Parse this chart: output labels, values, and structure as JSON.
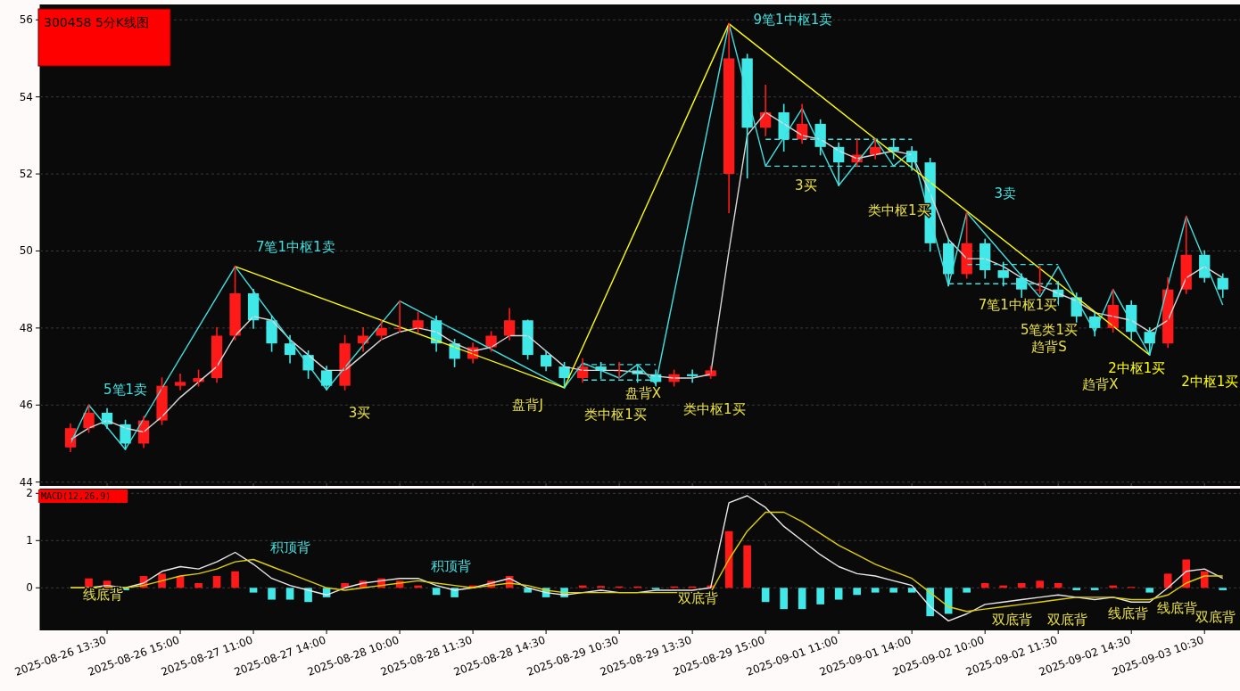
{
  "chart_data": [
    {
      "type": "candlestick",
      "title": "300458 5分K线图",
      "categories": [
        null,
        null,
        "2025-08-26 13:30",
        null,
        null,
        null,
        "2025-08-26 15:00",
        null,
        null,
        null,
        "2025-08-27 11:00",
        null,
        null,
        null,
        "2025-08-27 14:00",
        null,
        null,
        null,
        "2025-08-28 10:00",
        null,
        null,
        null,
        "2025-08-28 11:30",
        null,
        null,
        null,
        "2025-08-28 14:30",
        null,
        null,
        null,
        "2025-08-29 10:30",
        null,
        null,
        null,
        "2025-08-29 13:30",
        null,
        null,
        null,
        "2025-08-29 15:00",
        null,
        null,
        null,
        "2025-09-01 11:00",
        null,
        null,
        null,
        "2025-09-01 14:00",
        null,
        null,
        null,
        "2025-09-02 10:00",
        null,
        null,
        null,
        "2025-09-02 11:30",
        null,
        null,
        null,
        "2025-09-02 14:30",
        null,
        null,
        null,
        "2025-09-03 10:30",
        null
      ],
      "ohlc": [
        [
          44.9,
          45.5,
          44.8,
          45.4
        ],
        [
          45.4,
          46.0,
          45.3,
          45.8
        ],
        [
          45.8,
          45.9,
          45.4,
          45.5
        ],
        [
          45.5,
          45.6,
          44.85,
          45.0
        ],
        [
          45.0,
          45.7,
          44.9,
          45.6
        ],
        [
          45.6,
          46.7,
          45.5,
          46.5
        ],
        [
          46.5,
          46.8,
          46.4,
          46.6
        ],
        [
          46.6,
          46.9,
          46.5,
          46.7
        ],
        [
          46.7,
          48.0,
          46.6,
          47.8
        ],
        [
          47.8,
          49.6,
          47.7,
          48.9
        ],
        [
          48.9,
          49.0,
          48.0,
          48.2
        ],
        [
          48.2,
          48.3,
          47.4,
          47.6
        ],
        [
          47.6,
          47.8,
          47.1,
          47.3
        ],
        [
          47.3,
          47.4,
          46.7,
          46.9
        ],
        [
          46.9,
          47.0,
          46.4,
          46.5
        ],
        [
          46.5,
          47.8,
          46.4,
          47.6
        ],
        [
          47.6,
          48.0,
          47.4,
          47.8
        ],
        [
          47.8,
          48.2,
          47.7,
          48.0
        ],
        [
          48.0,
          48.7,
          47.9,
          48.0
        ],
        [
          48.0,
          48.4,
          47.9,
          48.2
        ],
        [
          48.2,
          48.3,
          47.4,
          47.6
        ],
        [
          47.6,
          47.7,
          47.0,
          47.2
        ],
        [
          47.2,
          47.6,
          47.1,
          47.5
        ],
        [
          47.5,
          47.9,
          47.4,
          47.8
        ],
        [
          47.8,
          48.5,
          47.7,
          48.2
        ],
        [
          48.2,
          48.2,
          47.2,
          47.3
        ],
        [
          47.3,
          47.4,
          46.9,
          47.0
        ],
        [
          47.0,
          47.1,
          46.45,
          46.7
        ],
        [
          46.7,
          47.2,
          46.6,
          47.0
        ],
        [
          47.0,
          47.1,
          46.7,
          46.9
        ],
        [
          46.9,
          47.1,
          46.7,
          46.9
        ],
        [
          46.9,
          47.0,
          46.6,
          46.8
        ],
        [
          46.8,
          46.9,
          46.5,
          46.6
        ],
        [
          46.6,
          46.9,
          46.5,
          46.8
        ],
        [
          46.8,
          46.9,
          46.6,
          46.75
        ],
        [
          46.75,
          47.0,
          46.7,
          46.9
        ],
        [
          52.0,
          55.9,
          51.0,
          55.0
        ],
        [
          55.0,
          55.1,
          51.9,
          53.2
        ],
        [
          53.2,
          54.3,
          53.0,
          53.6
        ],
        [
          53.6,
          53.8,
          52.6,
          52.9
        ],
        [
          52.9,
          53.8,
          52.8,
          53.3
        ],
        [
          53.3,
          53.4,
          52.5,
          52.7
        ],
        [
          52.7,
          52.8,
          51.7,
          52.3
        ],
        [
          52.3,
          52.9,
          52.2,
          52.5
        ],
        [
          52.5,
          52.9,
          52.4,
          52.7
        ],
        [
          52.7,
          52.9,
          52.4,
          52.6
        ],
        [
          52.6,
          52.7,
          52.1,
          52.3
        ],
        [
          52.3,
          52.4,
          50.0,
          50.2
        ],
        [
          50.2,
          50.3,
          49.1,
          49.4
        ],
        [
          49.4,
          51.0,
          49.3,
          50.2
        ],
        [
          50.2,
          50.3,
          49.3,
          49.5
        ],
        [
          49.5,
          49.7,
          49.1,
          49.3
        ],
        [
          49.3,
          49.4,
          48.8,
          49.0
        ],
        [
          49.0,
          49.6,
          48.9,
          49.0
        ],
        [
          49.0,
          49.2,
          48.6,
          48.8
        ],
        [
          48.8,
          48.9,
          48.1,
          48.3
        ],
        [
          48.3,
          48.4,
          47.8,
          48.0
        ],
        [
          48.0,
          49.0,
          47.9,
          48.6
        ],
        [
          48.6,
          48.7,
          47.7,
          47.9
        ],
        [
          47.9,
          48.0,
          47.3,
          47.6
        ],
        [
          47.6,
          49.3,
          47.5,
          49.0
        ],
        [
          49.0,
          50.9,
          48.9,
          49.9
        ],
        [
          49.9,
          50.0,
          49.2,
          49.3
        ],
        [
          49.3,
          49.4,
          48.8,
          49.0
        ]
      ],
      "colors": [
        "#ff1a1a",
        "#ff1a1a",
        "#40e8e8",
        "#40e8e8",
        "#ff1a1a",
        "#ff1a1a",
        "#ff1a1a",
        "#ff1a1a",
        "#ff1a1a",
        "#ff1a1a",
        "#40e8e8",
        "#40e8e8",
        "#40e8e8",
        "#40e8e8",
        "#40e8e8",
        "#ff1a1a",
        "#ff1a1a",
        "#ff1a1a",
        "#ff1a1a",
        "#ff1a1a",
        "#40e8e8",
        "#40e8e8",
        "#ff1a1a",
        "#ff1a1a",
        "#ff1a1a",
        "#40e8e8",
        "#40e8e8",
        "#40e8e8",
        "#ff1a1a",
        "#40e8e8",
        "#ff1a1a",
        "#40e8e8",
        "#40e8e8",
        "#ff1a1a",
        "#40e8e8",
        "#ff1a1a",
        "#ff1a1a",
        "#40e8e8",
        "#ff1a1a",
        "#40e8e8",
        "#ff1a1a",
        "#40e8e8",
        "#40e8e8",
        "#ff1a1a",
        "#ff1a1a",
        "#40e8e8",
        "#40e8e8",
        "#40e8e8",
        "#40e8e8",
        "#ff1a1a",
        "#40e8e8",
        "#40e8e8",
        "#40e8e8",
        "#ff1a1a",
        "#40e8e8",
        "#40e8e8",
        "#40e8e8",
        "#ff1a1a",
        "#40e8e8",
        "#40e8e8",
        "#ff1a1a",
        "#ff1a1a",
        "#40e8e8",
        "#40e8e8"
      ],
      "ylim": [
        43.9,
        56.4
      ],
      "yticks": [
        44,
        46,
        48,
        50,
        52,
        54,
        56
      ],
      "grid": "y",
      "tick_labels": "y",
      "series": [
        {
          "type": "line",
          "color": "#d8d8d8",
          "values": [
            45.1,
            45.4,
            45.6,
            45.4,
            45.3,
            45.7,
            46.2,
            46.6,
            47.0,
            47.8,
            48.3,
            48.2,
            47.7,
            47.3,
            46.9,
            46.9,
            47.3,
            47.7,
            47.9,
            48.0,
            47.9,
            47.6,
            47.4,
            47.5,
            47.8,
            47.8,
            47.4,
            47.0,
            46.9,
            46.9,
            46.9,
            46.85,
            46.75,
            46.7,
            46.7,
            46.8,
            50.0,
            53.0,
            53.6,
            53.3,
            53.0,
            52.9,
            52.6,
            52.4,
            52.5,
            52.6,
            52.5,
            51.5,
            50.3,
            49.8,
            49.8,
            49.6,
            49.3,
            49.1,
            48.9,
            48.7,
            48.4,
            48.3,
            48.2,
            47.9,
            48.2,
            49.3,
            49.6,
            49.3
          ]
        },
        {
          "type": "line",
          "color": "#40e0e0",
          "values": [
            45.0,
            46.0,
            null,
            44.85,
            null,
            null,
            null,
            null,
            null,
            49.6,
            null,
            null,
            null,
            null,
            46.4,
            null,
            null,
            null,
            48.7,
            null,
            null,
            null,
            null,
            null,
            null,
            null,
            null,
            46.45,
            47.1,
            null,
            46.7,
            47.05,
            46.55,
            null,
            null,
            null,
            55.9,
            null,
            52.2,
            null,
            53.7,
            null,
            51.7,
            null,
            52.9,
            52.2,
            52.6,
            null,
            49.1,
            51.0,
            null,
            null,
            null,
            48.8,
            49.6,
            null,
            47.9,
            49.0,
            null,
            47.3,
            null,
            50.9,
            null,
            48.6
          ]
        },
        {
          "type": "line",
          "color": "#ffff00",
          "values": [
            null,
            null,
            null,
            null,
            null,
            null,
            null,
            null,
            null,
            49.6,
            null,
            null,
            null,
            null,
            null,
            null,
            null,
            null,
            null,
            null,
            null,
            null,
            null,
            null,
            null,
            null,
            null,
            46.45,
            null,
            null,
            null,
            null,
            null,
            null,
            null,
            null,
            55.9,
            null,
            null,
            null,
            null,
            null,
            null,
            null,
            null,
            null,
            null,
            null,
            null,
            null,
            null,
            null,
            null,
            null,
            null,
            null,
            null,
            null,
            null,
            47.3,
            null,
            null,
            null,
            null
          ]
        },
        {
          "type": "line",
          "color": "#40e0e0",
          "line_style": "dashed",
          "values": [
            null,
            null,
            null,
            null,
            null,
            null,
            null,
            null,
            null,
            null,
            null,
            null,
            null,
            null,
            null,
            null,
            null,
            null,
            null,
            null,
            null,
            null,
            null,
            null,
            null,
            null,
            null,
            null,
            47.05,
            47.05,
            47.05,
            47.05,
            47.05,
            null,
            null,
            null,
            null,
            null,
            null,
            null,
            null,
            null,
            null,
            null,
            null,
            null,
            null,
            null,
            null,
            null,
            null,
            null,
            null,
            null,
            null,
            null,
            null,
            null,
            null,
            null,
            null,
            null,
            null,
            null
          ]
        },
        {
          "type": "line",
          "color": "#40e0e0",
          "line_style": "dashed",
          "values": [
            null,
            null,
            null,
            null,
            null,
            null,
            null,
            null,
            null,
            null,
            null,
            null,
            null,
            null,
            null,
            null,
            null,
            null,
            null,
            null,
            null,
            null,
            null,
            null,
            null,
            null,
            null,
            null,
            46.65,
            46.65,
            46.65,
            46.65,
            46.65,
            null,
            null,
            null,
            null,
            null,
            null,
            null,
            null,
            null,
            null,
            null,
            null,
            null,
            null,
            null,
            null,
            null,
            null,
            null,
            null,
            null,
            null,
            null,
            null,
            null,
            null,
            null,
            null,
            null,
            null,
            null
          ]
        },
        {
          "type": "line",
          "color": "#40e0e0",
          "line_style": "dashed",
          "values": [
            null,
            null,
            null,
            null,
            null,
            null,
            null,
            null,
            null,
            null,
            null,
            null,
            null,
            null,
            null,
            null,
            null,
            null,
            null,
            null,
            null,
            null,
            null,
            null,
            null,
            null,
            null,
            null,
            null,
            null,
            null,
            null,
            null,
            null,
            null,
            null,
            null,
            null,
            52.9,
            52.9,
            52.9,
            52.9,
            52.9,
            52.9,
            52.9,
            52.9,
            52.9,
            null,
            null,
            null,
            null,
            null,
            null,
            null,
            null,
            null,
            null,
            null,
            null,
            null,
            null,
            null,
            null,
            null
          ]
        },
        {
          "type": "line",
          "color": "#40e0e0",
          "line_style": "dashed",
          "values": [
            null,
            null,
            null,
            null,
            null,
            null,
            null,
            null,
            null,
            null,
            null,
            null,
            null,
            null,
            null,
            null,
            null,
            null,
            null,
            null,
            null,
            null,
            null,
            null,
            null,
            null,
            null,
            null,
            null,
            null,
            null,
            null,
            null,
            null,
            null,
            null,
            null,
            null,
            52.2,
            52.2,
            52.2,
            52.2,
            52.2,
            52.2,
            52.2,
            52.2,
            52.2,
            null,
            null,
            null,
            null,
            null,
            null,
            null,
            null,
            null,
            null,
            null,
            null,
            null,
            null,
            null,
            null,
            null
          ]
        },
        {
          "type": "line",
          "color": "#40e0e0",
          "line_style": "dashed",
          "values": [
            null,
            null,
            null,
            null,
            null,
            null,
            null,
            null,
            null,
            null,
            null,
            null,
            null,
            null,
            null,
            null,
            null,
            null,
            null,
            null,
            null,
            null,
            null,
            null,
            null,
            null,
            null,
            null,
            null,
            null,
            null,
            null,
            null,
            null,
            null,
            null,
            null,
            null,
            null,
            null,
            null,
            null,
            null,
            null,
            null,
            null,
            null,
            null,
            null,
            49.65,
            49.65,
            49.65,
            49.65,
            49.65,
            49.65,
            null,
            null,
            null,
            null,
            null,
            null,
            null,
            null,
            null
          ]
        },
        {
          "type": "line",
          "color": "#40e0e0",
          "line_style": "dashed",
          "values": [
            null,
            null,
            null,
            null,
            null,
            null,
            null,
            null,
            null,
            null,
            null,
            null,
            null,
            null,
            null,
            null,
            null,
            null,
            null,
            null,
            null,
            null,
            null,
            null,
            null,
            null,
            null,
            null,
            null,
            null,
            null,
            null,
            null,
            null,
            null,
            null,
            null,
            null,
            null,
            null,
            null,
            null,
            null,
            null,
            null,
            null,
            null,
            null,
            49.15,
            49.15,
            49.15,
            49.15,
            49.15,
            49.15,
            49.15,
            null,
            null,
            null,
            null,
            null,
            null,
            null,
            null,
            null
          ]
        }
      ],
      "annotations": [
        "5笔1卖",
        "7笔1中枢1卖",
        "3买",
        "盘背J",
        "类中枢1买",
        "盘背X",
        "类中枢1买",
        "9笔1中枢1卖",
        "3买",
        "类中枢1买",
        "3卖",
        "7笔1中枢1买",
        "5笔类1买",
        "趋背S",
        "2中枢1买",
        "趋背X",
        "2中枢1买"
      ]
    },
    {
      "type": "bar",
      "title": "MACD(12,26,9)",
      "categories": [
        null,
        null,
        "2025-08-26 13:30",
        null,
        null,
        null,
        "2025-08-26 15:00",
        null,
        null,
        null,
        "2025-08-27 11:00",
        null,
        null,
        null,
        "2025-08-27 14:00",
        null,
        null,
        null,
        "2025-08-28 10:00",
        null,
        null,
        null,
        "2025-08-28 11:30",
        null,
        null,
        null,
        "2025-08-28 14:30",
        null,
        null,
        null,
        "2025-08-29 10:30",
        null,
        null,
        null,
        "2025-08-29 13:30",
        null,
        null,
        null,
        "2025-08-29 15:00",
        null,
        null,
        null,
        "2025-09-01 11:00",
        null,
        null,
        null,
        "2025-09-01 14:00",
        null,
        null,
        null,
        "2025-09-02 10:00",
        null,
        null,
        null,
        "2025-09-02 11:30",
        null,
        null,
        null,
        "2025-09-02 14:30",
        null,
        null,
        null,
        "2025-09-03 10:30",
        null
      ],
      "ylim": [
        -0.9,
        2.1
      ],
      "yticks": [
        0,
        1,
        2
      ],
      "grid": "y",
      "series": [
        {
          "values": [
            0.0,
            0.2,
            0.15,
            -0.05,
            0.25,
            0.3,
            0.25,
            0.1,
            0.25,
            0.35,
            -0.1,
            -0.25,
            -0.25,
            -0.3,
            -0.2,
            0.1,
            0.15,
            0.2,
            0.15,
            0.05,
            -0.15,
            -0.2,
            0.05,
            0.15,
            0.25,
            -0.1,
            -0.2,
            -0.2,
            0.05,
            0.04,
            0.03,
            0.03,
            -0.03,
            0.03,
            0.03,
            0.05,
            1.2,
            0.9,
            -0.3,
            -0.45,
            -0.45,
            -0.35,
            -0.25,
            -0.15,
            -0.1,
            -0.1,
            -0.1,
            -0.6,
            -0.55,
            -0.1,
            0.1,
            0.05,
            0.1,
            0.15,
            0.1,
            -0.05,
            -0.05,
            0.05,
            0.02,
            -0.1,
            0.3,
            0.6,
            0.35,
            -0.05
          ],
          "colors": [
            "#ff1a1a",
            "#ff1a1a",
            "#ff1a1a",
            "#40e8e8",
            "#ff1a1a",
            "#ff1a1a",
            "#ff1a1a",
            "#ff1a1a",
            "#ff1a1a",
            "#ff1a1a",
            "#40e8e8",
            "#40e8e8",
            "#40e8e8",
            "#40e8e8",
            "#40e8e8",
            "#ff1a1a",
            "#ff1a1a",
            "#ff1a1a",
            "#ff1a1a",
            "#ff1a1a",
            "#40e8e8",
            "#40e8e8",
            "#ff1a1a",
            "#ff1a1a",
            "#ff1a1a",
            "#40e8e8",
            "#40e8e8",
            "#40e8e8",
            "#ff1a1a",
            "#ff1a1a",
            "#ff1a1a",
            "#ff1a1a",
            "#40e8e8",
            "#ff1a1a",
            "#ff1a1a",
            "#ff1a1a",
            "#ff1a1a",
            "#ff1a1a",
            "#40e8e8",
            "#40e8e8",
            "#40e8e8",
            "#40e8e8",
            "#40e8e8",
            "#40e8e8",
            "#40e8e8",
            "#40e8e8",
            "#40e8e8",
            "#40e8e8",
            "#40e8e8",
            "#40e8e8",
            "#ff1a1a",
            "#ff1a1a",
            "#ff1a1a",
            "#ff1a1a",
            "#ff1a1a",
            "#40e8e8",
            "#40e8e8",
            "#ff1a1a",
            "#ff1a1a",
            "#40e8e8",
            "#ff1a1a",
            "#ff1a1a",
            "#ff1a1a",
            "#40e8e8"
          ]
        },
        {
          "type": "line",
          "color": "#e8e8e8",
          "values": [
            0,
            0,
            0.05,
            0,
            0.1,
            0.35,
            0.45,
            0.4,
            0.55,
            0.75,
            0.5,
            0.2,
            0.05,
            -0.05,
            -0.15,
            0,
            0.1,
            0.15,
            0.2,
            0.2,
            0.05,
            -0.05,
            0,
            0.1,
            0.2,
            0,
            -0.1,
            -0.15,
            -0.1,
            -0.05,
            -0.1,
            -0.1,
            -0.05,
            -0.05,
            -0.05,
            0,
            1.8,
            1.95,
            1.7,
            1.3,
            1.0,
            0.7,
            0.45,
            0.3,
            0.25,
            0.15,
            0.05,
            -0.4,
            -0.7,
            -0.55,
            -0.35,
            -0.3,
            -0.25,
            -0.2,
            -0.15,
            -0.2,
            -0.25,
            -0.2,
            -0.3,
            -0.3,
            0,
            0.35,
            0.4,
            0.2
          ]
        },
        {
          "type": "line",
          "color": "#e0d000",
          "values": [
            0,
            0,
            0,
            0,
            0.05,
            0.15,
            0.25,
            0.3,
            0.4,
            0.55,
            0.6,
            0.45,
            0.3,
            0.15,
            0,
            -0.05,
            0,
            0.05,
            0.1,
            0.15,
            0.1,
            0.05,
            0,
            0.05,
            0.1,
            0.05,
            -0.05,
            -0.1,
            -0.1,
            -0.1,
            -0.1,
            -0.1,
            -0.1,
            -0.1,
            -0.1,
            -0.1,
            0.6,
            1.2,
            1.6,
            1.6,
            1.4,
            1.15,
            0.9,
            0.7,
            0.5,
            0.35,
            0.2,
            -0.1,
            -0.4,
            -0.5,
            -0.45,
            -0.4,
            -0.35,
            -0.3,
            -0.25,
            -0.2,
            -0.2,
            -0.2,
            -0.25,
            -0.25,
            -0.15,
            0.1,
            0.25,
            0.25
          ]
        }
      ],
      "annotations": [
        "线底背",
        "积顶背",
        "积顶背",
        "双底背",
        "双底背",
        "双底背",
        "线底背",
        "线底背",
        "双底背"
      ]
    }
  ]
}
